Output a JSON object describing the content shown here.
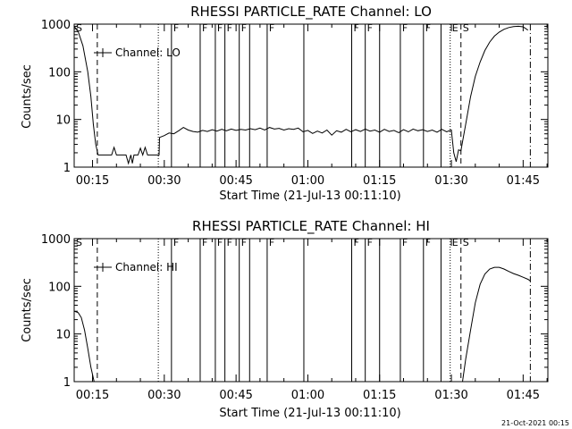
{
  "chart_data": [
    {
      "type": "line",
      "title": "RHESSI PARTICLE_RATE Channel: LO",
      "xlabel": "Start Time (21-Jul-13 00:11:10)",
      "ylabel": "Counts/sec",
      "yscale": "log",
      "ylim": [
        1,
        1000
      ],
      "xlim_minutes": [
        0,
        99
      ],
      "x_ticks": [
        "00:15",
        "00:30",
        "00:45",
        "01:00",
        "01:15",
        "01:30",
        "01:45"
      ],
      "y_ticks": [
        "1",
        "10",
        "100",
        "1000"
      ],
      "legend": "Channel: LO",
      "legend_position": "top-left",
      "series": [
        {
          "name": "Channel: LO",
          "points": [
            [
              "00:11:10",
              900
            ],
            [
              "00:12:00",
              700
            ],
            [
              "00:13:00",
              350
            ],
            [
              "00:14:00",
              100
            ],
            [
              "00:14:40",
              30
            ],
            [
              "00:15:10",
              8
            ],
            [
              "00:15:40",
              3
            ],
            [
              "00:16:10",
              1.8
            ],
            [
              "00:19:00",
              1.8
            ],
            [
              "00:19:30",
              2.6
            ],
            [
              "00:20:00",
              1.8
            ],
            [
              "00:22:00",
              1.8
            ],
            [
              "00:22:30",
              1.2
            ],
            [
              "00:23:00",
              1.8
            ],
            [
              "00:23:20",
              1.2
            ],
            [
              "00:23:40",
              1.8
            ],
            [
              "00:24:30",
              1.8
            ],
            [
              "00:25:00",
              2.5
            ],
            [
              "00:25:30",
              1.8
            ],
            [
              "00:26:00",
              2.6
            ],
            [
              "00:26:30",
              1.8
            ],
            [
              "00:28:55",
              1.8
            ],
            [
              "00:29:00",
              4.2
            ],
            [
              "00:30:00",
              4.6
            ],
            [
              "00:31:00",
              5.2
            ],
            [
              "00:32:00",
              5.0
            ],
            [
              "00:33:00",
              5.8
            ],
            [
              "00:34:00",
              6.8
            ],
            [
              "00:35:00",
              6.0
            ],
            [
              "00:36:00",
              5.6
            ],
            [
              "00:37:00",
              5.4
            ],
            [
              "00:38:00",
              5.9
            ],
            [
              "00:39:00",
              5.6
            ],
            [
              "00:40:00",
              6.1
            ],
            [
              "00:41:00",
              5.7
            ],
            [
              "00:42:00",
              6.2
            ],
            [
              "00:43:00",
              5.8
            ],
            [
              "00:44:00",
              6.3
            ],
            [
              "00:45:00",
              5.9
            ],
            [
              "00:46:00",
              6.2
            ],
            [
              "00:47:00",
              6.0
            ],
            [
              "00:48:00",
              6.4
            ],
            [
              "00:49:00",
              6.1
            ],
            [
              "00:50:00",
              6.6
            ],
            [
              "00:51:00",
              6.0
            ],
            [
              "00:52:00",
              6.8
            ],
            [
              "00:53:00",
              6.3
            ],
            [
              "00:54:00",
              6.5
            ],
            [
              "00:55:00",
              6.0
            ],
            [
              "00:56:00",
              6.4
            ],
            [
              "00:57:00",
              6.2
            ],
            [
              "00:58:00",
              6.6
            ],
            [
              "00:59:00",
              5.5
            ],
            [
              "01:00:00",
              5.9
            ],
            [
              "01:01:00",
              5.1
            ],
            [
              "01:02:00",
              5.7
            ],
            [
              "01:03:00",
              5.2
            ],
            [
              "01:04:00",
              6.0
            ],
            [
              "01:05:00",
              4.7
            ],
            [
              "01:06:00",
              5.8
            ],
            [
              "01:07:00",
              5.4
            ],
            [
              "01:08:00",
              6.2
            ],
            [
              "01:09:00",
              5.5
            ],
            [
              "01:10:00",
              6.1
            ],
            [
              "01:11:00",
              5.6
            ],
            [
              "01:12:00",
              6.3
            ],
            [
              "01:13:00",
              5.7
            ],
            [
              "01:14:00",
              6.0
            ],
            [
              "01:15:00",
              5.4
            ],
            [
              "01:16:00",
              6.2
            ],
            [
              "01:17:00",
              5.6
            ],
            [
              "01:18:00",
              5.9
            ],
            [
              "01:19:00",
              5.3
            ],
            [
              "01:20:00",
              6.1
            ],
            [
              "01:21:00",
              5.5
            ],
            [
              "01:22:00",
              6.3
            ],
            [
              "01:23:00",
              5.8
            ],
            [
              "01:24:00",
              6.1
            ],
            [
              "01:25:00",
              5.6
            ],
            [
              "01:26:00",
              6.0
            ],
            [
              "01:27:00",
              5.4
            ],
            [
              "01:28:00",
              6.2
            ],
            [
              "01:29:00",
              5.5
            ],
            [
              "01:30:00",
              6.0
            ],
            [
              "01:30:30",
              2.0
            ],
            [
              "01:31:00",
              1.3
            ],
            [
              "01:31:30",
              2.3
            ],
            [
              "01:32:00",
              2.2
            ],
            [
              "01:33:00",
              8
            ],
            [
              "01:34:00",
              30
            ],
            [
              "01:35:00",
              80
            ],
            [
              "01:36:00",
              160
            ],
            [
              "01:37:00",
              280
            ],
            [
              "01:38:00",
              420
            ],
            [
              "01:39:00",
              560
            ],
            [
              "01:40:00",
              680
            ],
            [
              "01:41:00",
              780
            ],
            [
              "01:42:00",
              850
            ],
            [
              "01:43:00",
              890
            ],
            [
              "01:44:00",
              900
            ],
            [
              "01:45:00",
              880
            ],
            [
              "01:46:00",
              750
            ]
          ]
        }
      ],
      "lines": {
        "dashed": [
          "00:16:00",
          "01:32:00"
        ],
        "dotted": [
          "00:28:45",
          "01:29:45"
        ],
        "solid": [
          "00:31:30",
          "00:37:30",
          "00:40:40",
          "00:42:40",
          "00:45:40",
          "00:47:50",
          "00:51:30",
          "00:59:10",
          "01:09:10",
          "01:12:00",
          "01:15:00",
          "01:19:20",
          "01:24:10",
          "01:27:50"
        ],
        "dashdot": [
          "01:46:30"
        ]
      },
      "flags": [
        {
          "label": "S",
          "time": "00:11:10"
        },
        {
          "label": "F",
          "time": "00:31:30"
        },
        {
          "label": "F",
          "time": "00:37:30"
        },
        {
          "label": "F",
          "time": "00:40:40"
        },
        {
          "label": "F",
          "time": "00:42:40"
        },
        {
          "label": "F",
          "time": "00:45:40"
        },
        {
          "label": "F",
          "time": "00:51:30"
        },
        {
          "label": "F",
          "time": "01:09:10"
        },
        {
          "label": "F",
          "time": "01:12:00"
        },
        {
          "label": "F",
          "time": "01:19:20"
        },
        {
          "label": "F",
          "time": "01:24:10"
        },
        {
          "label": "E",
          "time": "01:29:45"
        },
        {
          "label": "S",
          "time": "01:32:00"
        }
      ]
    },
    {
      "type": "line",
      "title": "RHESSI PARTICLE_RATE Channel: HI",
      "xlabel": "Start Time (21-Jul-13 00:11:10)",
      "ylabel": "Counts/sec",
      "yscale": "log",
      "ylim": [
        1,
        1000
      ],
      "xlim_minutes": [
        0,
        99
      ],
      "x_ticks": [
        "00:15",
        "00:30",
        "00:45",
        "01:00",
        "01:15",
        "01:30",
        "01:45"
      ],
      "y_ticks": [
        "1",
        "10",
        "100",
        "1000"
      ],
      "legend": "Channel: HI",
      "legend_position": "top-left",
      "series": [
        {
          "name": "Channel: HI",
          "points": [
            [
              "00:11:10",
              30
            ],
            [
              "00:12:00",
              28
            ],
            [
              "00:12:40",
              22
            ],
            [
              "00:13:20",
              12
            ],
            [
              "00:14:00",
              5
            ],
            [
              "00:14:40",
              2
            ],
            [
              "00:15:20",
              1
            ]
          ]
        },
        {
          "name": "Channel: HI",
          "points": [
            [
              "01:32:20",
              1
            ],
            [
              "01:33:00",
              3
            ],
            [
              "01:34:00",
              12
            ],
            [
              "01:35:00",
              45
            ],
            [
              "01:36:00",
              110
            ],
            [
              "01:37:00",
              180
            ],
            [
              "01:38:00",
              230
            ],
            [
              "01:39:00",
              250
            ],
            [
              "01:40:00",
              250
            ],
            [
              "01:41:00",
              230
            ],
            [
              "01:42:00",
              205
            ],
            [
              "01:43:00",
              185
            ],
            [
              "01:44:00",
              170
            ],
            [
              "01:45:00",
              155
            ],
            [
              "01:46:00",
              140
            ],
            [
              "01:46:30",
              130
            ]
          ]
        }
      ],
      "lines": {
        "dashed": [
          "00:16:00",
          "01:32:00"
        ],
        "dotted": [
          "00:28:45",
          "01:29:45"
        ],
        "solid": [
          "00:31:30",
          "00:37:30",
          "00:40:40",
          "00:42:40",
          "00:45:40",
          "00:47:50",
          "00:51:30",
          "00:59:10",
          "01:09:10",
          "01:12:00",
          "01:15:00",
          "01:19:20",
          "01:24:10",
          "01:27:50"
        ],
        "dashdot": [
          "01:46:30"
        ]
      },
      "flags": [
        {
          "label": "S",
          "time": "00:11:10"
        },
        {
          "label": "F",
          "time": "00:31:30"
        },
        {
          "label": "F",
          "time": "00:37:30"
        },
        {
          "label": "F",
          "time": "00:40:40"
        },
        {
          "label": "F",
          "time": "00:42:40"
        },
        {
          "label": "F",
          "time": "00:45:40"
        },
        {
          "label": "F",
          "time": "00:51:30"
        },
        {
          "label": "F",
          "time": "01:09:10"
        },
        {
          "label": "F",
          "time": "01:12:00"
        },
        {
          "label": "F",
          "time": "01:19:20"
        },
        {
          "label": "F",
          "time": "01:24:10"
        },
        {
          "label": "E",
          "time": "01:29:45"
        },
        {
          "label": "S",
          "time": "01:32:00"
        }
      ]
    }
  ],
  "footer": {
    "stamp": "21-Oct-2021 00:15"
  }
}
